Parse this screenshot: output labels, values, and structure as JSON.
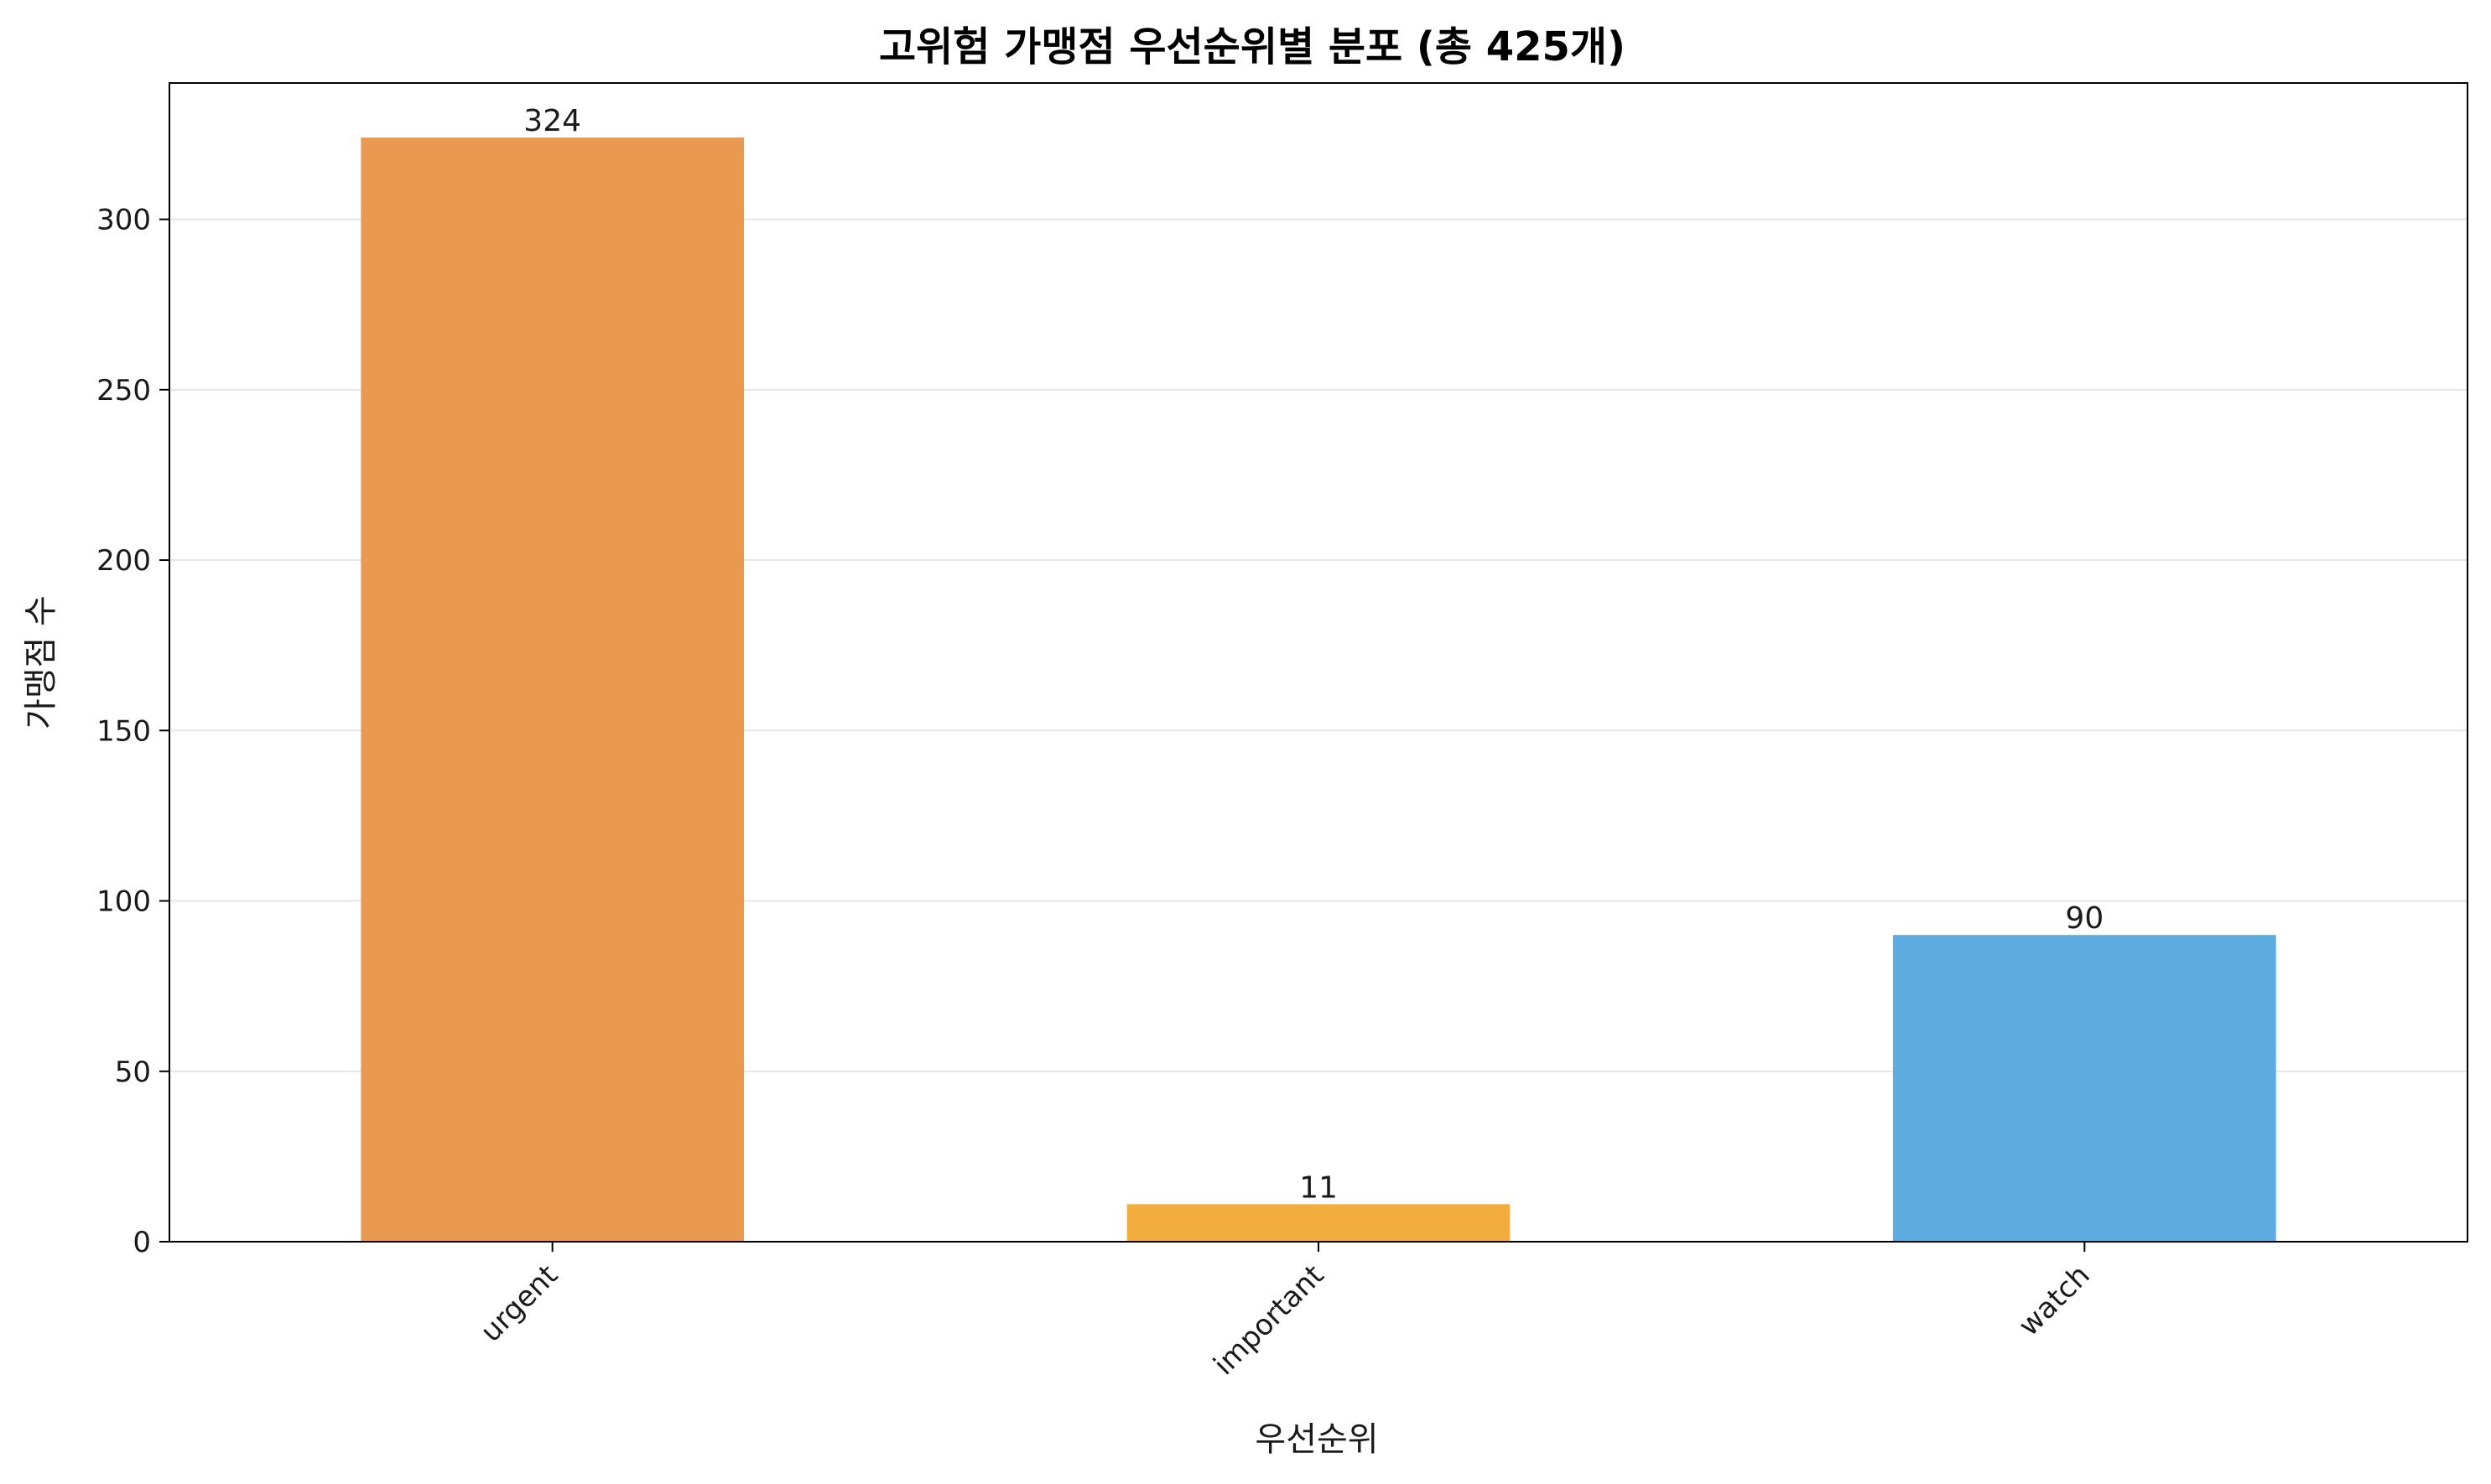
{
  "chart_data": {
    "type": "bar",
    "title": "고위험 가맹점 우선순위별 분포 (총 425개)",
    "xlabel": "우선순위",
    "ylabel": "가맹점 수",
    "categories": [
      "urgent",
      "important",
      "watch"
    ],
    "values": [
      324,
      11,
      90
    ],
    "data_labels": [
      "324",
      "11",
      "90"
    ],
    "colors": [
      "#EA9950",
      "#F3AD3F",
      "#5DADE2"
    ],
    "ylim": [
      0,
      340
    ],
    "yticks": [
      0,
      50,
      100,
      150,
      200,
      250,
      300
    ],
    "grid": "y",
    "x_tick_rotation": 45
  }
}
